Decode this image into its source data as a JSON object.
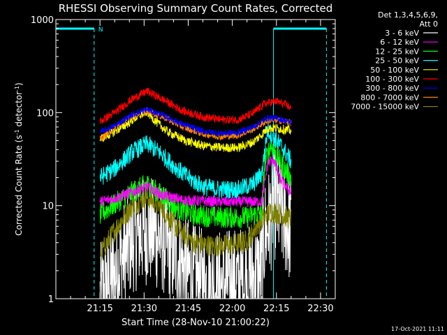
{
  "chart_data": {
    "type": "line",
    "title": "RHESSI Observing Summary Count Rates, Corrected",
    "xlabel": "Start Time (28-Nov-10 21:00:22)",
    "ylabel_parts": [
      "Corrected Count Rate (s",
      "-1",
      " detector",
      "-1",
      ")"
    ],
    "y_scale": "log",
    "ylim": [
      1,
      1000
    ],
    "xlim_minutes": [
      0,
      95
    ],
    "x_ticks": [
      {
        "m": 15,
        "label": "21:15"
      },
      {
        "m": 30,
        "label": "21:30"
      },
      {
        "m": 45,
        "label": "21:45"
      },
      {
        "m": 60,
        "label": "22:00"
      },
      {
        "m": 75,
        "label": "22:15"
      },
      {
        "m": 90,
        "label": "22:30"
      }
    ],
    "y_ticks": [
      {
        "v": 1,
        "label": "1"
      },
      {
        "v": 10,
        "label": "10"
      },
      {
        "v": 100,
        "label": "100"
      },
      {
        "v": 1000,
        "label": "1000"
      }
    ],
    "legend": {
      "header": [
        "Det 1,3,4,5,6,9,",
        "Att 0"
      ],
      "placement": "right"
    },
    "series": [
      {
        "name": "3 - 6 keV",
        "color": "#ffffff",
        "noise": 0.6,
        "points": [
          [
            15,
            1
          ],
          [
            20,
            1.8
          ],
          [
            26,
            4.5
          ],
          [
            31,
            5.5
          ],
          [
            36,
            4.5
          ],
          [
            41,
            2.8
          ],
          [
            47,
            1.6
          ],
          [
            53,
            1.4
          ],
          [
            60,
            1.5
          ],
          [
            66,
            1.6
          ],
          [
            70,
            2.0
          ],
          [
            71,
            5.0
          ],
          [
            73,
            7.2
          ],
          [
            74,
            10.5
          ],
          [
            76,
            9.0
          ],
          [
            79,
            6.0
          ],
          [
            80,
            5.5
          ]
        ]
      },
      {
        "name": "6 - 12 keV",
        "color": "#ff00ff",
        "noise": 0.06,
        "points": [
          [
            15,
            11
          ],
          [
            20,
            12
          ],
          [
            26,
            14
          ],
          [
            31,
            16
          ],
          [
            36,
            13
          ],
          [
            43,
            11.5
          ],
          [
            55,
            11
          ],
          [
            70,
            11
          ],
          [
            72,
            28
          ],
          [
            74,
            32
          ],
          [
            76,
            20
          ],
          [
            79,
            15
          ],
          [
            80,
            14
          ]
        ]
      },
      {
        "name": "12 - 25 keV",
        "color": "#00ff00",
        "noise": 0.12,
        "points": [
          [
            15,
            8
          ],
          [
            20,
            10.5
          ],
          [
            26,
            14
          ],
          [
            31,
            17
          ],
          [
            36,
            13
          ],
          [
            41,
            9.5
          ],
          [
            47,
            8
          ],
          [
            55,
            7.5
          ],
          [
            65,
            7.5
          ],
          [
            70,
            8.5
          ],
          [
            71,
            28
          ],
          [
            73,
            45
          ],
          [
            75,
            35
          ],
          [
            78,
            24
          ],
          [
            80,
            20
          ]
        ]
      },
      {
        "name": "25 - 50 keV",
        "color": "#00ffff",
        "noise": 0.1,
        "points": [
          [
            15,
            20
          ],
          [
            20,
            25
          ],
          [
            26,
            38
          ],
          [
            31,
            46
          ],
          [
            35,
            38
          ],
          [
            40,
            27
          ],
          [
            45,
            20
          ],
          [
            50,
            16
          ],
          [
            55,
            15
          ],
          [
            62,
            15
          ],
          [
            67,
            17
          ],
          [
            70,
            22
          ],
          [
            72,
            65
          ],
          [
            74,
            55
          ],
          [
            77,
            42
          ],
          [
            80,
            30
          ]
        ]
      },
      {
        "name": "50 - 100 keV",
        "color": "#ffff00",
        "noise": 0.05,
        "points": [
          [
            15,
            52
          ],
          [
            19,
            60
          ],
          [
            24,
            75
          ],
          [
            28,
            92
          ],
          [
            31,
            102
          ],
          [
            34,
            80
          ],
          [
            38,
            62
          ],
          [
            44,
            50
          ],
          [
            50,
            44
          ],
          [
            56,
            42
          ],
          [
            62,
            42
          ],
          [
            67,
            48
          ],
          [
            70,
            58
          ],
          [
            72,
            68
          ],
          [
            75,
            68
          ],
          [
            80,
            64
          ]
        ]
      },
      {
        "name": "100 - 300 keV",
        "color": "#ff0000",
        "noise": 0.045,
        "points": [
          [
            15,
            80
          ],
          [
            20,
            100
          ],
          [
            26,
            140
          ],
          [
            31,
            170
          ],
          [
            37,
            135
          ],
          [
            43,
            105
          ],
          [
            50,
            90
          ],
          [
            56,
            84
          ],
          [
            62,
            84
          ],
          [
            67,
            98
          ],
          [
            71,
            125
          ],
          [
            75,
            132
          ],
          [
            78,
            122
          ],
          [
            80,
            112
          ]
        ]
      },
      {
        "name": "300 - 800 keV",
        "color": "#0000ff",
        "noise": 0.035,
        "points": [
          [
            15,
            61
          ],
          [
            20,
            72
          ],
          [
            26,
            95
          ],
          [
            31,
            108
          ],
          [
            37,
            92
          ],
          [
            43,
            75
          ],
          [
            50,
            63
          ],
          [
            56,
            60
          ],
          [
            62,
            61
          ],
          [
            67,
            70
          ],
          [
            72,
            88
          ],
          [
            76,
            86
          ],
          [
            79,
            80
          ],
          [
            80,
            78
          ]
        ]
      },
      {
        "name": "800 - 7000 keV",
        "color": "#ff8000",
        "noise": 0.035,
        "points": [
          [
            15,
            52
          ],
          [
            20,
            68
          ],
          [
            26,
            92
          ],
          [
            31,
            104
          ],
          [
            37,
            88
          ],
          [
            43,
            70
          ],
          [
            50,
            59
          ],
          [
            56,
            55
          ],
          [
            62,
            57
          ],
          [
            67,
            66
          ],
          [
            72,
            82
          ],
          [
            76,
            82
          ],
          [
            80,
            78
          ]
        ]
      },
      {
        "name": "7000 - 15000 keV",
        "color": "#808000",
        "noise": 0.12,
        "points": [
          [
            15,
            3
          ],
          [
            20,
            5.5
          ],
          [
            26,
            10
          ],
          [
            31,
            12.5
          ],
          [
            36,
            9.5
          ],
          [
            41,
            5.8
          ],
          [
            47,
            4.0
          ],
          [
            53,
            3.7
          ],
          [
            60,
            3.8
          ],
          [
            65,
            4.2
          ],
          [
            69,
            6.5
          ],
          [
            71,
            7.5
          ],
          [
            73,
            8.7
          ],
          [
            76,
            8.2
          ],
          [
            80,
            7.2
          ]
        ]
      }
    ]
  },
  "overlays": {
    "n_label": "N",
    "night_intervals_minutes": [
      [
        0,
        13
      ],
      [
        74,
        92
      ]
    ]
  },
  "timestamp": "17-Oct-2021 11:11"
}
